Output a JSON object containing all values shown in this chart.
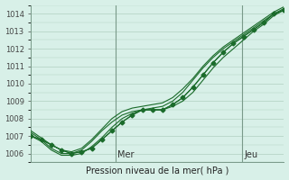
{
  "title": "",
  "xlabel": "Pression niveau de la mer( hPa )",
  "ylim": [
    1005.5,
    1014.5
  ],
  "yticks": [
    1006,
    1007,
    1008,
    1009,
    1010,
    1011,
    1012,
    1013,
    1014
  ],
  "background_color": "#d8f0e8",
  "grid_color": "#b0d0c0",
  "line_color": "#1a6b2a",
  "day_labels": [
    [
      "Mer",
      0.333
    ],
    [
      "Jeu",
      0.833
    ]
  ],
  "series": [
    [
      1007.0,
      1006.8,
      1006.5,
      1006.2,
      1006.0,
      1006.1,
      1006.3,
      1006.8,
      1007.3,
      1007.8,
      1008.2,
      1008.5,
      1008.5,
      1008.5,
      1008.8,
      1009.2,
      1009.8,
      1010.5,
      1011.2,
      1011.8,
      1012.3,
      1012.7,
      1013.1,
      1013.5,
      1014.0,
      1014.2
    ],
    [
      1007.0,
      1006.7,
      1006.2,
      1005.9,
      1005.9,
      1006.0,
      1006.4,
      1006.9,
      1007.5,
      1008.0,
      1008.3,
      1008.5,
      1008.5,
      1008.5,
      1008.7,
      1009.0,
      1009.5,
      1010.2,
      1010.9,
      1011.5,
      1012.0,
      1012.5,
      1013.0,
      1013.4,
      1013.9,
      1014.2
    ],
    [
      1007.2,
      1006.8,
      1006.3,
      1006.0,
      1006.0,
      1006.2,
      1006.7,
      1007.3,
      1007.8,
      1008.2,
      1008.4,
      1008.5,
      1008.6,
      1008.7,
      1009.0,
      1009.5,
      1010.2,
      1010.9,
      1011.5,
      1012.0,
      1012.4,
      1012.8,
      1013.2,
      1013.6,
      1014.0,
      1014.3
    ],
    [
      1007.3,
      1006.9,
      1006.5,
      1006.2,
      1006.1,
      1006.3,
      1006.8,
      1007.4,
      1008.0,
      1008.4,
      1008.6,
      1008.7,
      1008.8,
      1008.9,
      1009.2,
      1009.7,
      1010.3,
      1011.0,
      1011.6,
      1012.1,
      1012.5,
      1012.9,
      1013.3,
      1013.7,
      1014.1,
      1014.4
    ]
  ],
  "marker_series": [
    [
      1007.0,
      1006.8,
      1006.5,
      1006.2,
      1006.0,
      1006.1,
      1006.3,
      1006.8,
      1007.3,
      1007.8,
      1008.2,
      1008.5,
      1008.5,
      1008.5,
      1008.8,
      1009.2,
      1009.8,
      1010.5,
      1011.2,
      1011.8,
      1012.3,
      1012.7,
      1013.1,
      1013.5,
      1014.0,
      1014.2
    ]
  ]
}
